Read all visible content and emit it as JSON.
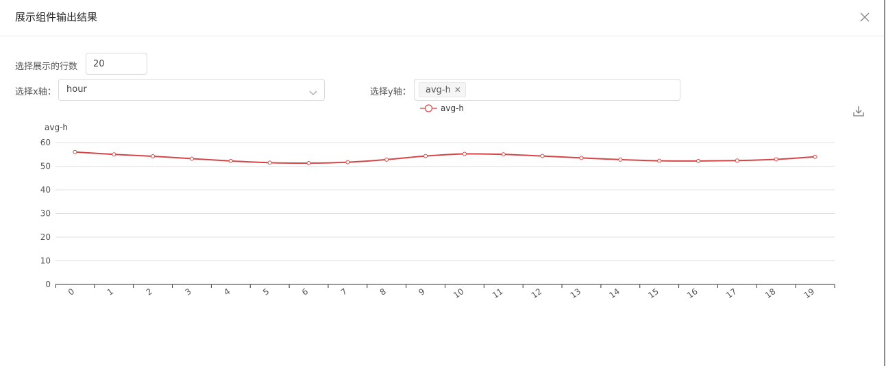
{
  "modal": {
    "title": "展示组件输出结果"
  },
  "form": {
    "rows_label": "选择展示的行数",
    "rows_value": "20",
    "x_label": "选择x轴：",
    "x_value": "hour",
    "y_label": "选择y轴：",
    "y_tags": [
      "avg-h"
    ]
  },
  "icons": {
    "close": "close-icon",
    "dropdown": "chevron-down-icon",
    "download": "download-icon"
  },
  "chart_data": {
    "type": "line",
    "title": "",
    "xlabel": "",
    "ylabel": "avg-h",
    "categories": [
      "0",
      "1",
      "2",
      "3",
      "4",
      "5",
      "6",
      "7",
      "8",
      "9",
      "10",
      "11",
      "12",
      "13",
      "14",
      "15",
      "16",
      "17",
      "18",
      "19"
    ],
    "series": [
      {
        "name": "avg-h",
        "values": [
          56,
          55,
          54.2,
          53.2,
          52.2,
          51.5,
          51.3,
          51.7,
          52.8,
          54.3,
          55.2,
          55,
          54.3,
          53.5,
          52.8,
          52.3,
          52.2,
          52.4,
          52.9,
          54
        ],
        "color": "#d64545"
      }
    ],
    "ylim": [
      0,
      60
    ],
    "yticks": [
      0,
      10,
      20,
      30,
      40,
      50,
      60
    ],
    "grid": true,
    "legend": "top-center",
    "smooth": true
  }
}
